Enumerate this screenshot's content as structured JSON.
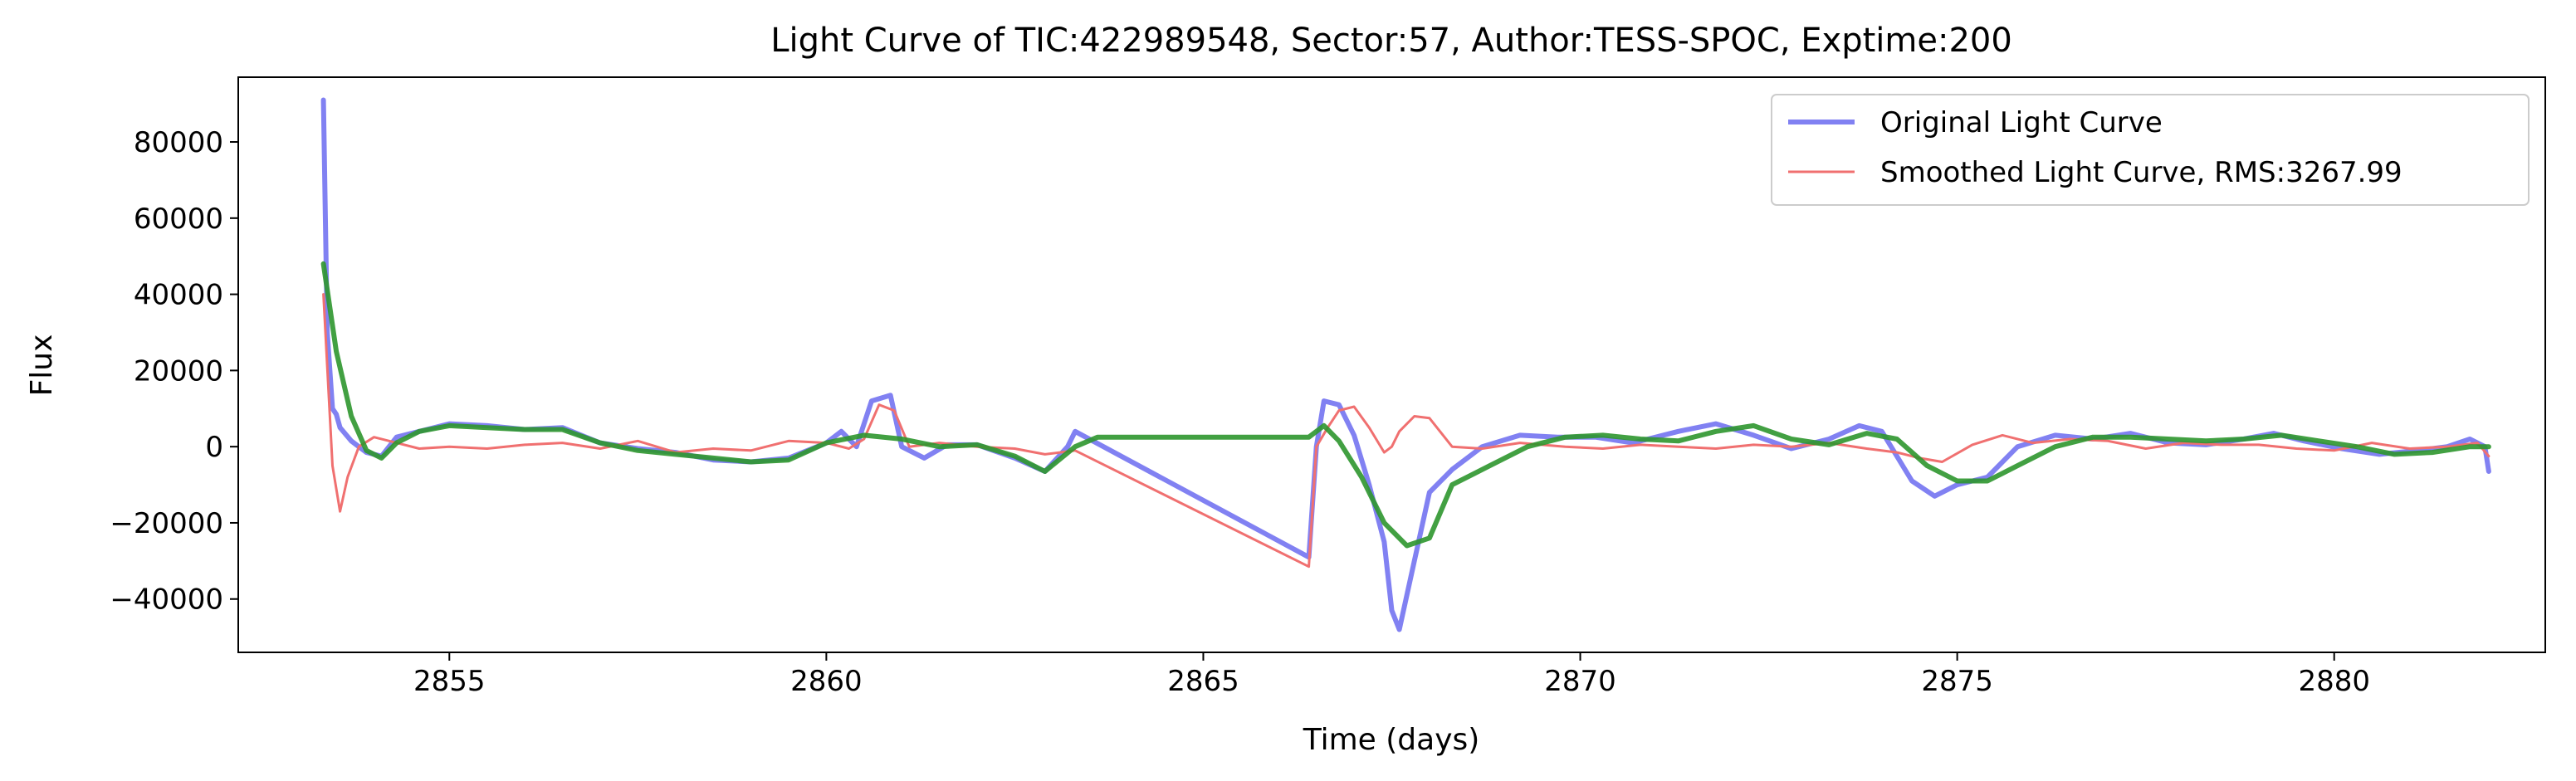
{
  "chart_data": {
    "type": "line",
    "title": "Light Curve of TIC:422989548, Sector:57, Author:TESS-SPOC, Exptime:200",
    "xlabel": "Time (days)",
    "ylabel": "Flux",
    "xlim": [
      2852.2,
      2882.8
    ],
    "ylim": [
      -54000,
      97000
    ],
    "xticks": [
      2855,
      2860,
      2865,
      2870,
      2875,
      2880
    ],
    "xtick_labels": [
      "2855",
      "2860",
      "2865",
      "2870",
      "2875",
      "2880"
    ],
    "yticks": [
      -40000,
      -20000,
      0,
      20000,
      40000,
      60000,
      80000
    ],
    "ytick_labels": [
      "−40000",
      "−20000",
      "0",
      "20000",
      "40000",
      "60000",
      "80000"
    ],
    "grid": false,
    "legend_position": "top-right",
    "series": [
      {
        "name": "Original Light Curve",
        "color": "#6b6bf0",
        "opacity": 0.85,
        "x": [
          2853.33,
          2853.38,
          2853.45,
          2853.5,
          2853.55,
          2853.7,
          2853.9,
          2854.1,
          2854.3,
          2854.6,
          2855,
          2855.5,
          2856,
          2856.5,
          2857,
          2857.5,
          2858,
          2858.5,
          2859,
          2859.5,
          2860,
          2860.2,
          2860.4,
          2860.6,
          2860.85,
          2861,
          2861.3,
          2861.6,
          2862,
          2862.5,
          2862.9,
          2863.2,
          2863.3,
          2866.4,
          2866.5,
          2866.6,
          2866.8,
          2867,
          2867.2,
          2867.4,
          2867.5,
          2867.6,
          2867.8,
          2868,
          2868.3,
          2868.7,
          2869.2,
          2869.7,
          2870.2,
          2870.7,
          2871.3,
          2871.8,
          2872.3,
          2872.8,
          2873.3,
          2873.7,
          2874,
          2874.4,
          2874.7,
          2875,
          2875.4,
          2875.8,
          2876.3,
          2876.8,
          2877.3,
          2877.8,
          2878.3,
          2878.8,
          2879.2,
          2879.6,
          2880.1,
          2880.6,
          2881.1,
          2881.5,
          2881.8,
          2882,
          2882.05
        ],
        "y": [
          91000,
          30000,
          10000,
          8500,
          5000,
          1500,
          -1500,
          -2500,
          2500,
          4000,
          6000,
          5500,
          4500,
          5000,
          1000,
          -500,
          -1500,
          -3500,
          -4000,
          -3000,
          1000,
          4000,
          0,
          12000,
          13500,
          0,
          -3000,
          500,
          500,
          -3000,
          -6500,
          0,
          4000,
          -29000,
          0,
          12000,
          11000,
          3000,
          -10000,
          -25000,
          -43000,
          -48000,
          -30000,
          -12000,
          -6000,
          0,
          3000,
          2500,
          2500,
          1000,
          4000,
          6000,
          3000,
          -500,
          2000,
          5500,
          4000,
          -9000,
          -13000,
          -10000,
          -8000,
          0,
          3000,
          2000,
          3500,
          1000,
          500,
          2000,
          3500,
          1500,
          -500,
          -2000,
          -1000,
          0,
          2000,
          0,
          -6500
        ]
      },
      {
        "name": "Smoothed Light Curve, RMS:3267.99",
        "color": "#f07070",
        "opacity": 1,
        "x": [
          2853.33,
          2853.45,
          2853.55,
          2853.65,
          2853.8,
          2854,
          2854.3,
          2854.6,
          2855,
          2855.5,
          2856,
          2856.5,
          2857,
          2857.5,
          2858,
          2858.5,
          2859,
          2859.5,
          2860,
          2860.3,
          2860.5,
          2860.7,
          2860.9,
          2861.1,
          2861.5,
          2862,
          2862.5,
          2862.9,
          2863.3,
          2866.4,
          2866.5,
          2866.65,
          2866.8,
          2867,
          2867.2,
          2867.4,
          2867.5,
          2867.6,
          2867.8,
          2868,
          2868.3,
          2868.7,
          2869.2,
          2869.8,
          2870.3,
          2870.8,
          2871.3,
          2871.8,
          2872.3,
          2872.8,
          2873.3,
          2873.8,
          2874.2,
          2874.5,
          2874.8,
          2875.2,
          2875.6,
          2876,
          2876.5,
          2877,
          2877.5,
          2878,
          2878.5,
          2879,
          2879.5,
          2880,
          2880.5,
          2881,
          2881.5,
          2881.9,
          2882.05
        ],
        "y": [
          40000,
          -5000,
          -17000,
          -8000,
          0,
          2500,
          1000,
          -500,
          0,
          -500,
          500,
          1000,
          -500,
          1500,
          -1500,
          -500,
          -1000,
          1500,
          1000,
          -500,
          2000,
          11000,
          9500,
          0,
          1000,
          0,
          -500,
          -2000,
          -1000,
          -31500,
          0,
          5000,
          9500,
          10500,
          5000,
          -1500,
          0,
          4000,
          8000,
          7500,
          0,
          -500,
          1000,
          0,
          -500,
          500,
          0,
          -500,
          500,
          0,
          1000,
          -500,
          -1500,
          -3000,
          -4000,
          500,
          3000,
          1000,
          2000,
          1500,
          -500,
          1000,
          500,
          500,
          -500,
          -1000,
          1000,
          -500,
          0,
          1000,
          -2500
        ]
      },
      {
        "name": "",
        "color": "#2d962d",
        "opacity": 0.9,
        "x": [
          2853.33,
          2853.5,
          2853.7,
          2853.9,
          2854.1,
          2854.3,
          2854.6,
          2855,
          2855.5,
          2856,
          2856.5,
          2857,
          2857.5,
          2858,
          2858.5,
          2859,
          2859.5,
          2860,
          2860.5,
          2861,
          2861.5,
          2862,
          2862.5,
          2862.9,
          2863.3,
          2863.6,
          2866.4,
          2866.6,
          2866.8,
          2867.1,
          2867.4,
          2867.7,
          2868,
          2868.3,
          2868.8,
          2869.3,
          2869.8,
          2870.3,
          2870.8,
          2871.3,
          2871.8,
          2872.3,
          2872.8,
          2873.3,
          2873.8,
          2874.2,
          2874.6,
          2875,
          2875.4,
          2875.8,
          2876.3,
          2876.8,
          2877.3,
          2877.8,
          2878.3,
          2878.8,
          2879.3,
          2879.8,
          2880.3,
          2880.8,
          2881.3,
          2881.8,
          2882.05
        ],
        "y": [
          48000,
          25000,
          8000,
          -1000,
          -3000,
          1000,
          4000,
          5500,
          5000,
          4500,
          4500,
          1000,
          -1000,
          -2000,
          -3000,
          -4000,
          -3500,
          1000,
          3000,
          2000,
          0,
          500,
          -2500,
          -6500,
          0,
          2500,
          2500,
          5500,
          1500,
          -8000,
          -20000,
          -26000,
          -24000,
          -10000,
          -5000,
          0,
          2500,
          3000,
          2000,
          1500,
          4000,
          5500,
          2000,
          500,
          3500,
          2000,
          -5000,
          -9000,
          -9000,
          -5000,
          0,
          2500,
          2500,
          2000,
          1500,
          2000,
          3000,
          1500,
          0,
          -2000,
          -1500,
          0,
          0
        ]
      }
    ]
  }
}
